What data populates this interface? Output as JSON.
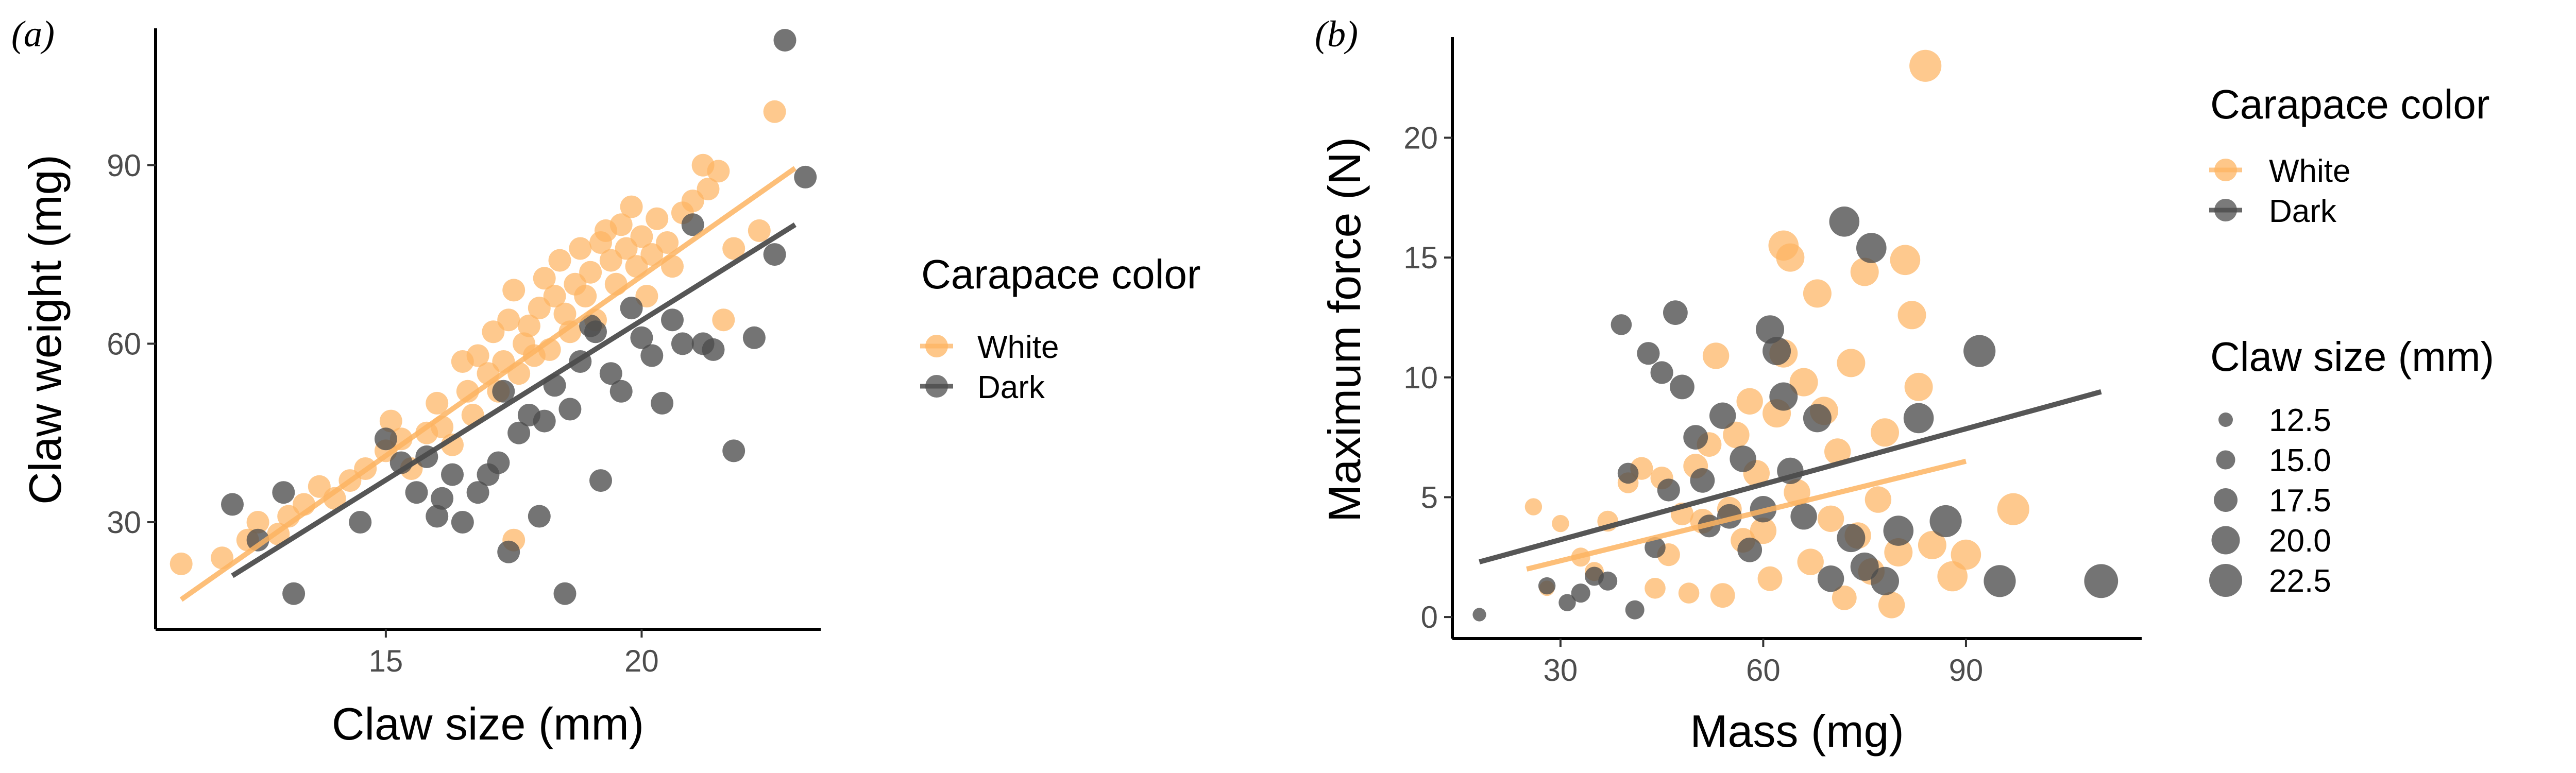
{
  "chart_data": [
    {
      "type": "scatter",
      "panel_label": "(a)",
      "xlabel": "Claw size (mm)",
      "ylabel": "Claw weight (mg)",
      "xlim": [
        10.5,
        23.5
      ],
      "ylim": [
        12,
        113
      ],
      "xticks": [
        "15",
        "20"
      ],
      "xtick_values": [
        15,
        20
      ],
      "yticks": [
        "30",
        "60",
        "90"
      ],
      "ytick_values": [
        30,
        60,
        90
      ],
      "grid": false,
      "legend": {
        "title": "Carapace color",
        "position": "right",
        "entries": [
          "White",
          "Dark"
        ]
      },
      "series": [
        {
          "name": "White",
          "color": "#fdb462",
          "trend": {
            "x": [
              11.0,
              23.0
            ],
            "y": [
              17.0,
              89.5
            ]
          },
          "points": [
            [
              11.0,
              23
            ],
            [
              11.8,
              24
            ],
            [
              12.3,
              27
            ],
            [
              12.5,
              30
            ],
            [
              12.9,
              28
            ],
            [
              13.1,
              31
            ],
            [
              13.4,
              33
            ],
            [
              13.7,
              36
            ],
            [
              14.0,
              34
            ],
            [
              14.3,
              37
            ],
            [
              14.6,
              39
            ],
            [
              15.0,
              42
            ],
            [
              15.1,
              47
            ],
            [
              15.3,
              44
            ],
            [
              15.5,
              39
            ],
            [
              15.8,
              45
            ],
            [
              16.0,
              50
            ],
            [
              16.1,
              46
            ],
            [
              16.3,
              43
            ],
            [
              16.5,
              57
            ],
            [
              16.6,
              52
            ],
            [
              16.7,
              48
            ],
            [
              16.8,
              58
            ],
            [
              17.0,
              55
            ],
            [
              17.1,
              62
            ],
            [
              17.2,
              52
            ],
            [
              17.3,
              57
            ],
            [
              17.4,
              64
            ],
            [
              17.5,
              69
            ],
            [
              17.5,
              27
            ],
            [
              17.6,
              55
            ],
            [
              17.7,
              60
            ],
            [
              17.8,
              63
            ],
            [
              17.9,
              58
            ],
            [
              18.0,
              66
            ],
            [
              18.1,
              71
            ],
            [
              18.2,
              59
            ],
            [
              18.3,
              68
            ],
            [
              18.4,
              74
            ],
            [
              18.5,
              65
            ],
            [
              18.6,
              62
            ],
            [
              18.7,
              70
            ],
            [
              18.8,
              76
            ],
            [
              18.9,
              68
            ],
            [
              19.0,
              72
            ],
            [
              19.1,
              64
            ],
            [
              19.2,
              77
            ],
            [
              19.3,
              79
            ],
            [
              19.4,
              74
            ],
            [
              19.5,
              70
            ],
            [
              19.6,
              80
            ],
            [
              19.7,
              76
            ],
            [
              19.8,
              83
            ],
            [
              19.9,
              73
            ],
            [
              20.0,
              78
            ],
            [
              20.1,
              68
            ],
            [
              20.2,
              75
            ],
            [
              20.3,
              81
            ],
            [
              20.5,
              77
            ],
            [
              20.6,
              73
            ],
            [
              20.8,
              82
            ],
            [
              21.0,
              84
            ],
            [
              21.2,
              90
            ],
            [
              21.3,
              86
            ],
            [
              21.5,
              89
            ],
            [
              21.6,
              64
            ],
            [
              21.8,
              76
            ],
            [
              22.3,
              79
            ],
            [
              22.6,
              99
            ]
          ]
        },
        {
          "name": "Dark",
          "color": "#4d4d4d",
          "trend": {
            "x": [
              12.0,
              23.0
            ],
            "y": [
              21.0,
              80.0
            ]
          },
          "points": [
            [
              12.0,
              33
            ],
            [
              12.5,
              27
            ],
            [
              13.0,
              35
            ],
            [
              13.2,
              18
            ],
            [
              14.5,
              30
            ],
            [
              15.0,
              44
            ],
            [
              15.3,
              40
            ],
            [
              15.6,
              35
            ],
            [
              15.8,
              41
            ],
            [
              16.0,
              31
            ],
            [
              16.1,
              34
            ],
            [
              16.3,
              38
            ],
            [
              16.5,
              30
            ],
            [
              16.8,
              35
            ],
            [
              17.0,
              38
            ],
            [
              17.2,
              40
            ],
            [
              17.3,
              52
            ],
            [
              17.4,
              25
            ],
            [
              17.6,
              45
            ],
            [
              17.8,
              48
            ],
            [
              18.0,
              31
            ],
            [
              18.1,
              47
            ],
            [
              18.3,
              53
            ],
            [
              18.5,
              18
            ],
            [
              18.6,
              49
            ],
            [
              18.8,
              57
            ],
            [
              19.0,
              63
            ],
            [
              19.1,
              62
            ],
            [
              19.2,
              37
            ],
            [
              19.4,
              55
            ],
            [
              19.6,
              52
            ],
            [
              19.8,
              66
            ],
            [
              20.0,
              61
            ],
            [
              20.2,
              58
            ],
            [
              20.4,
              50
            ],
            [
              20.6,
              64
            ],
            [
              20.8,
              60
            ],
            [
              21.0,
              80
            ],
            [
              21.2,
              60
            ],
            [
              21.4,
              59
            ],
            [
              21.8,
              42
            ],
            [
              22.2,
              61
            ],
            [
              22.6,
              75
            ],
            [
              22.8,
              111
            ],
            [
              23.2,
              88
            ]
          ]
        }
      ]
    },
    {
      "type": "scatter",
      "panel_label": "(b)",
      "xlabel": "Mass (mg)",
      "ylabel": "Maximum force (N)",
      "xlim": [
        14,
        116
      ],
      "ylim": [
        -0.9,
        24.2
      ],
      "xticks": [
        "30",
        "60",
        "90"
      ],
      "xtick_values": [
        30,
        60,
        90
      ],
      "yticks": [
        "0",
        "5",
        "10",
        "15",
        "20"
      ],
      "ytick_values": [
        0,
        5,
        10,
        15,
        20
      ],
      "grid": false,
      "legend": {
        "title": "Carapace color",
        "position": "right",
        "entries": [
          "White",
          "Dark"
        ],
        "size_title": "Claw size (mm)",
        "size_entries": [
          "12.5",
          "15.0",
          "17.5",
          "20.0",
          "22.5"
        ],
        "size_values": [
          12.5,
          15.0,
          17.5,
          20.0,
          22.5
        ]
      },
      "series": [
        {
          "name": "White",
          "color": "#fdb462",
          "trend": {
            "x": [
              25,
              90
            ],
            "y": [
              2.0,
              6.5
            ]
          },
          "points": [
            [
              26,
              4.6,
              14
            ],
            [
              28,
              1.2,
              13
            ],
            [
              30,
              3.9,
              14
            ],
            [
              33,
              2.5,
              15
            ],
            [
              35,
              1.9,
              15
            ],
            [
              37,
              4.0,
              16
            ],
            [
              40,
              5.6,
              16
            ],
            [
              42,
              6.2,
              17
            ],
            [
              44,
              1.2,
              16
            ],
            [
              45,
              5.8,
              17
            ],
            [
              46,
              2.6,
              17
            ],
            [
              48,
              4.3,
              17
            ],
            [
              49,
              1.0,
              16
            ],
            [
              50,
              6.3,
              18
            ],
            [
              51,
              4.0,
              18
            ],
            [
              52,
              7.2,
              18
            ],
            [
              53,
              10.9,
              19
            ],
            [
              54,
              0.9,
              18
            ],
            [
              55,
              4.5,
              18
            ],
            [
              56,
              7.6,
              19
            ],
            [
              57,
              3.2,
              18
            ],
            [
              58,
              9.0,
              19
            ],
            [
              59,
              6.0,
              19
            ],
            [
              60,
              3.6,
              19
            ],
            [
              61,
              1.6,
              18
            ],
            [
              62,
              8.5,
              20
            ],
            [
              63,
              11.0,
              20
            ],
            [
              63,
              15.5,
              21
            ],
            [
              64,
              15.0,
              20
            ],
            [
              65,
              5.2,
              19
            ],
            [
              66,
              9.8,
              20
            ],
            [
              67,
              2.3,
              19
            ],
            [
              68,
              13.5,
              20
            ],
            [
              69,
              8.6,
              20
            ],
            [
              70,
              4.1,
              19
            ],
            [
              71,
              6.9,
              19
            ],
            [
              72,
              0.8,
              18
            ],
            [
              73,
              10.6,
              20
            ],
            [
              74,
              3.4,
              19
            ],
            [
              75,
              14.4,
              20
            ],
            [
              76,
              1.9,
              19
            ],
            [
              77,
              4.9,
              19
            ],
            [
              78,
              7.7,
              20
            ],
            [
              79,
              0.5,
              19
            ],
            [
              80,
              2.7,
              20
            ],
            [
              81,
              14.9,
              21
            ],
            [
              82,
              12.6,
              20
            ],
            [
              83,
              9.6,
              20
            ],
            [
              84,
              23.0,
              22
            ],
            [
              85,
              3.0,
              20
            ],
            [
              88,
              1.7,
              21
            ],
            [
              90,
              2.6,
              21
            ],
            [
              97,
              4.5,
              22
            ]
          ]
        },
        {
          "name": "Dark",
          "color": "#4d4d4d",
          "trend": {
            "x": [
              18,
              110
            ],
            "y": [
              2.3,
              9.4
            ]
          },
          "points": [
            [
              18,
              0.1,
              12
            ],
            [
              28,
              1.3,
              14
            ],
            [
              31,
              0.6,
              14
            ],
            [
              33,
              1.0,
              15
            ],
            [
              35,
              1.7,
              15
            ],
            [
              37,
              1.5,
              15
            ],
            [
              39,
              12.2,
              16
            ],
            [
              40,
              6.0,
              16
            ],
            [
              41,
              0.3,
              15
            ],
            [
              43,
              11.0,
              17
            ],
            [
              44,
              2.9,
              16
            ],
            [
              45,
              10.2,
              17
            ],
            [
              46,
              5.3,
              17
            ],
            [
              47,
              12.7,
              18
            ],
            [
              48,
              9.6,
              18
            ],
            [
              50,
              7.5,
              18
            ],
            [
              51,
              5.7,
              18
            ],
            [
              52,
              3.8,
              17
            ],
            [
              54,
              8.4,
              19
            ],
            [
              55,
              4.2,
              18
            ],
            [
              57,
              6.6,
              19
            ],
            [
              58,
              2.8,
              18
            ],
            [
              60,
              4.5,
              19
            ],
            [
              61,
              12.0,
              20
            ],
            [
              62,
              11.1,
              20
            ],
            [
              63,
              9.2,
              20
            ],
            [
              64,
              6.1,
              19
            ],
            [
              66,
              4.2,
              19
            ],
            [
              68,
              8.3,
              20
            ],
            [
              70,
              1.6,
              19
            ],
            [
              72,
              16.5,
              21
            ],
            [
              73,
              3.3,
              20
            ],
            [
              75,
              2.1,
              20
            ],
            [
              76,
              15.4,
              21
            ],
            [
              78,
              1.5,
              20
            ],
            [
              80,
              3.6,
              21
            ],
            [
              83,
              8.3,
              21
            ],
            [
              87,
              4.0,
              22
            ],
            [
              92,
              11.1,
              22
            ],
            [
              95,
              1.5,
              22
            ],
            [
              110,
              1.5,
              23
            ]
          ]
        }
      ]
    }
  ]
}
